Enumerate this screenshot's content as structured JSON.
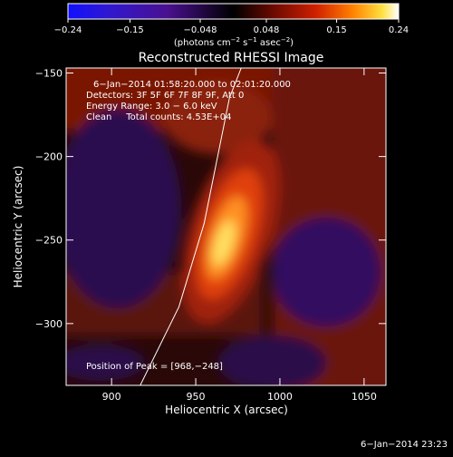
{
  "chart_data": {
    "type": "heatmap",
    "title": "Reconstructed RHESSI Image",
    "xlabel": "Heliocentric X (arcsec)",
    "ylabel": "Heliocentric Y (arcsec)",
    "xlim": [
      873,
      1063
    ],
    "ylim": [
      -337,
      -147
    ],
    "x_ticks": [
      900,
      950,
      1000,
      1050
    ],
    "x_tick_labels": [
      "900",
      "950",
      "1000",
      "1050"
    ],
    "y_ticks": [
      -150,
      -200,
      -250,
      -300
    ],
    "y_tick_labels": [
      "−150",
      "−200",
      "−250",
      "−300"
    ],
    "colorbar": {
      "range": [
        -0.24,
        0.24
      ],
      "ticks": [
        -0.24,
        -0.15,
        -0.048,
        0.048,
        0.15,
        0.24
      ],
      "tick_labels": [
        "−0.24",
        "−0.15",
        "−0.048",
        "0.048",
        "0.15",
        "0.24"
      ],
      "units_label": "(photons cm",
      "units_sup1": "−2",
      "units_mid": " s",
      "units_sup2": "−1",
      "units_mid2": " asec",
      "units_sup3": "−2",
      "units_end": ")"
    },
    "annotations": {
      "time_range": "6−Jan−2014 01:58:20.000 to 02:01:20.000",
      "detectors": "Detectors: 3F 5F 6F 7F 8F 9F, Att 0",
      "energy": "Energy Range: 3.0 − 6.0 keV",
      "clean": "Clean     Total counts: 4.53E+04",
      "peak": "Position of Peak = [968,−248]"
    },
    "peak": {
      "x": 968,
      "y": -248
    },
    "limb_curve": [
      [
        917,
        -337
      ],
      [
        940,
        -290
      ],
      [
        955,
        -240
      ],
      [
        965,
        -190
      ],
      [
        970,
        -165
      ],
      [
        977,
        -147
      ]
    ],
    "footer_date": "6−Jan−2014 23:23"
  }
}
